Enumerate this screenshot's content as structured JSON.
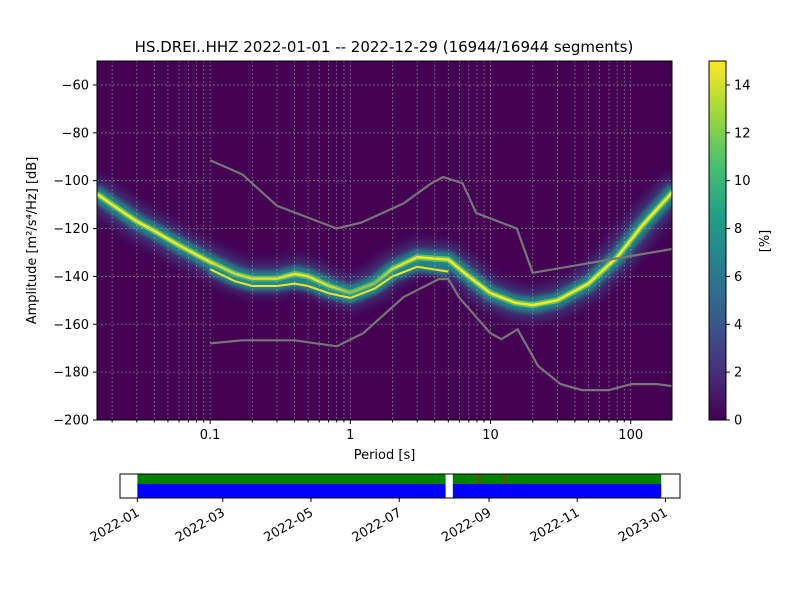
{
  "title": "HS.DREI..HHZ   2022-01-01 -- 2022-12-29  (16944/16944 segments)",
  "chart_data": [
    {
      "type": "heatmap",
      "title": "HS.DREI..HHZ   2022-01-01 -- 2022-12-29  (16944/16944 segments)",
      "xlabel": "Period [s]",
      "ylabel": "Amplitude [m²/s⁴/Hz] [dB]",
      "xscale": "log",
      "xlim": [
        0.0156,
        197
      ],
      "ylim": [
        -200,
        -50
      ],
      "xticks": [
        0.1,
        1,
        10,
        100
      ],
      "xtick_labels": [
        "0.1",
        "1",
        "10",
        "100"
      ],
      "yticks": [
        -60,
        -80,
        -100,
        -120,
        -140,
        -160,
        -180,
        -200
      ],
      "ytick_labels": [
        "−60",
        "−80",
        "−100",
        "−120",
        "−140",
        "−160",
        "−180",
        "−200"
      ],
      "grid": true,
      "colorbar": {
        "label": "[%]",
        "range": [
          0,
          15
        ],
        "ticks": [
          0,
          2,
          4,
          6,
          8,
          10,
          12,
          14
        ],
        "tick_labels": [
          "0",
          "2",
          "4",
          "6",
          "8",
          "10",
          "12",
          "14"
        ],
        "colormap": [
          "#440154",
          "#46327e",
          "#365c8d",
          "#277f8e",
          "#1fa187",
          "#4ac16d",
          "#a0da39",
          "#fde725"
        ]
      },
      "ppsd_ridges": [
        {
          "period": [
            0.016,
            0.02,
            0.03,
            0.04,
            0.06,
            0.1,
            0.15,
            0.2,
            0.3,
            0.4,
            0.5,
            0.7,
            1.0,
            1.5,
            2.0,
            3.0,
            5.0,
            7.0,
            10,
            15,
            20,
            30,
            50,
            80,
            120,
            197
          ],
          "mode_db": [
            -106,
            -110,
            -117,
            -121,
            -127,
            -134,
            -139,
            -141,
            -141,
            -139,
            -140,
            -144,
            -147,
            -143,
            -137,
            -132,
            -133,
            -140,
            -147,
            -151,
            -152,
            -150,
            -143,
            -132,
            -119,
            -105
          ]
        },
        {
          "period": [
            0.1,
            0.15,
            0.2,
            0.3,
            0.4,
            0.5,
            0.7,
            1.0,
            1.5,
            2.0,
            3.0,
            5.0
          ],
          "mode_db": [
            -137,
            -142,
            -144,
            -144,
            -143,
            -144,
            -147,
            -149,
            -145,
            -140,
            -136,
            -138
          ]
        }
      ],
      "noise_models": [
        {
          "period": [
            0.1,
            0.17,
            0.3,
            0.8,
            1.2,
            2.4,
            3.8,
            4.6,
            6.3,
            7.9,
            15.4,
            20,
            354.8
          ],
          "db": [
            -91.5,
            -97.4,
            -110.5,
            -120,
            -117.5,
            -109.5,
            -101,
            -98.5,
            -101,
            -113.5,
            -120,
            -138.5,
            -126
          ]
        },
        {
          "period": [
            0.1,
            0.17,
            0.4,
            0.8,
            1.24,
            2.4,
            4.3,
            5.0,
            6.0,
            10.0,
            12.0,
            15.6,
            21.9,
            31.6,
            45.0,
            70.0,
            101.0,
            154.0,
            328.0
          ],
          "db": [
            -168,
            -166.7,
            -166.7,
            -169.2,
            -163.7,
            -148.6,
            -141.1,
            -141.1,
            -149,
            -163.8,
            -166.2,
            -162.1,
            -177.5,
            -185,
            -187.5,
            -187.5,
            -185,
            -185,
            -187.5
          ]
        }
      ]
    },
    {
      "type": "timeline",
      "xlim": [
        "2021-12-20",
        "2023-01-11"
      ],
      "xtick_labels": [
        "2022-01",
        "2022-03",
        "2022-05",
        "2022-07",
        "2022-09",
        "2022-11",
        "2023-01"
      ],
      "coverage_segments": [
        {
          "start": "2022-01-01",
          "end": "2022-08-02"
        },
        {
          "start": "2022-08-07",
          "end": "2022-12-29"
        }
      ],
      "row_colors": [
        "#008000",
        "#0000ff"
      ],
      "gap_color": "#ffffff",
      "marks": [
        "2022-08-25",
        "2022-09-12"
      ],
      "mark_color": "#ff0000"
    }
  ]
}
